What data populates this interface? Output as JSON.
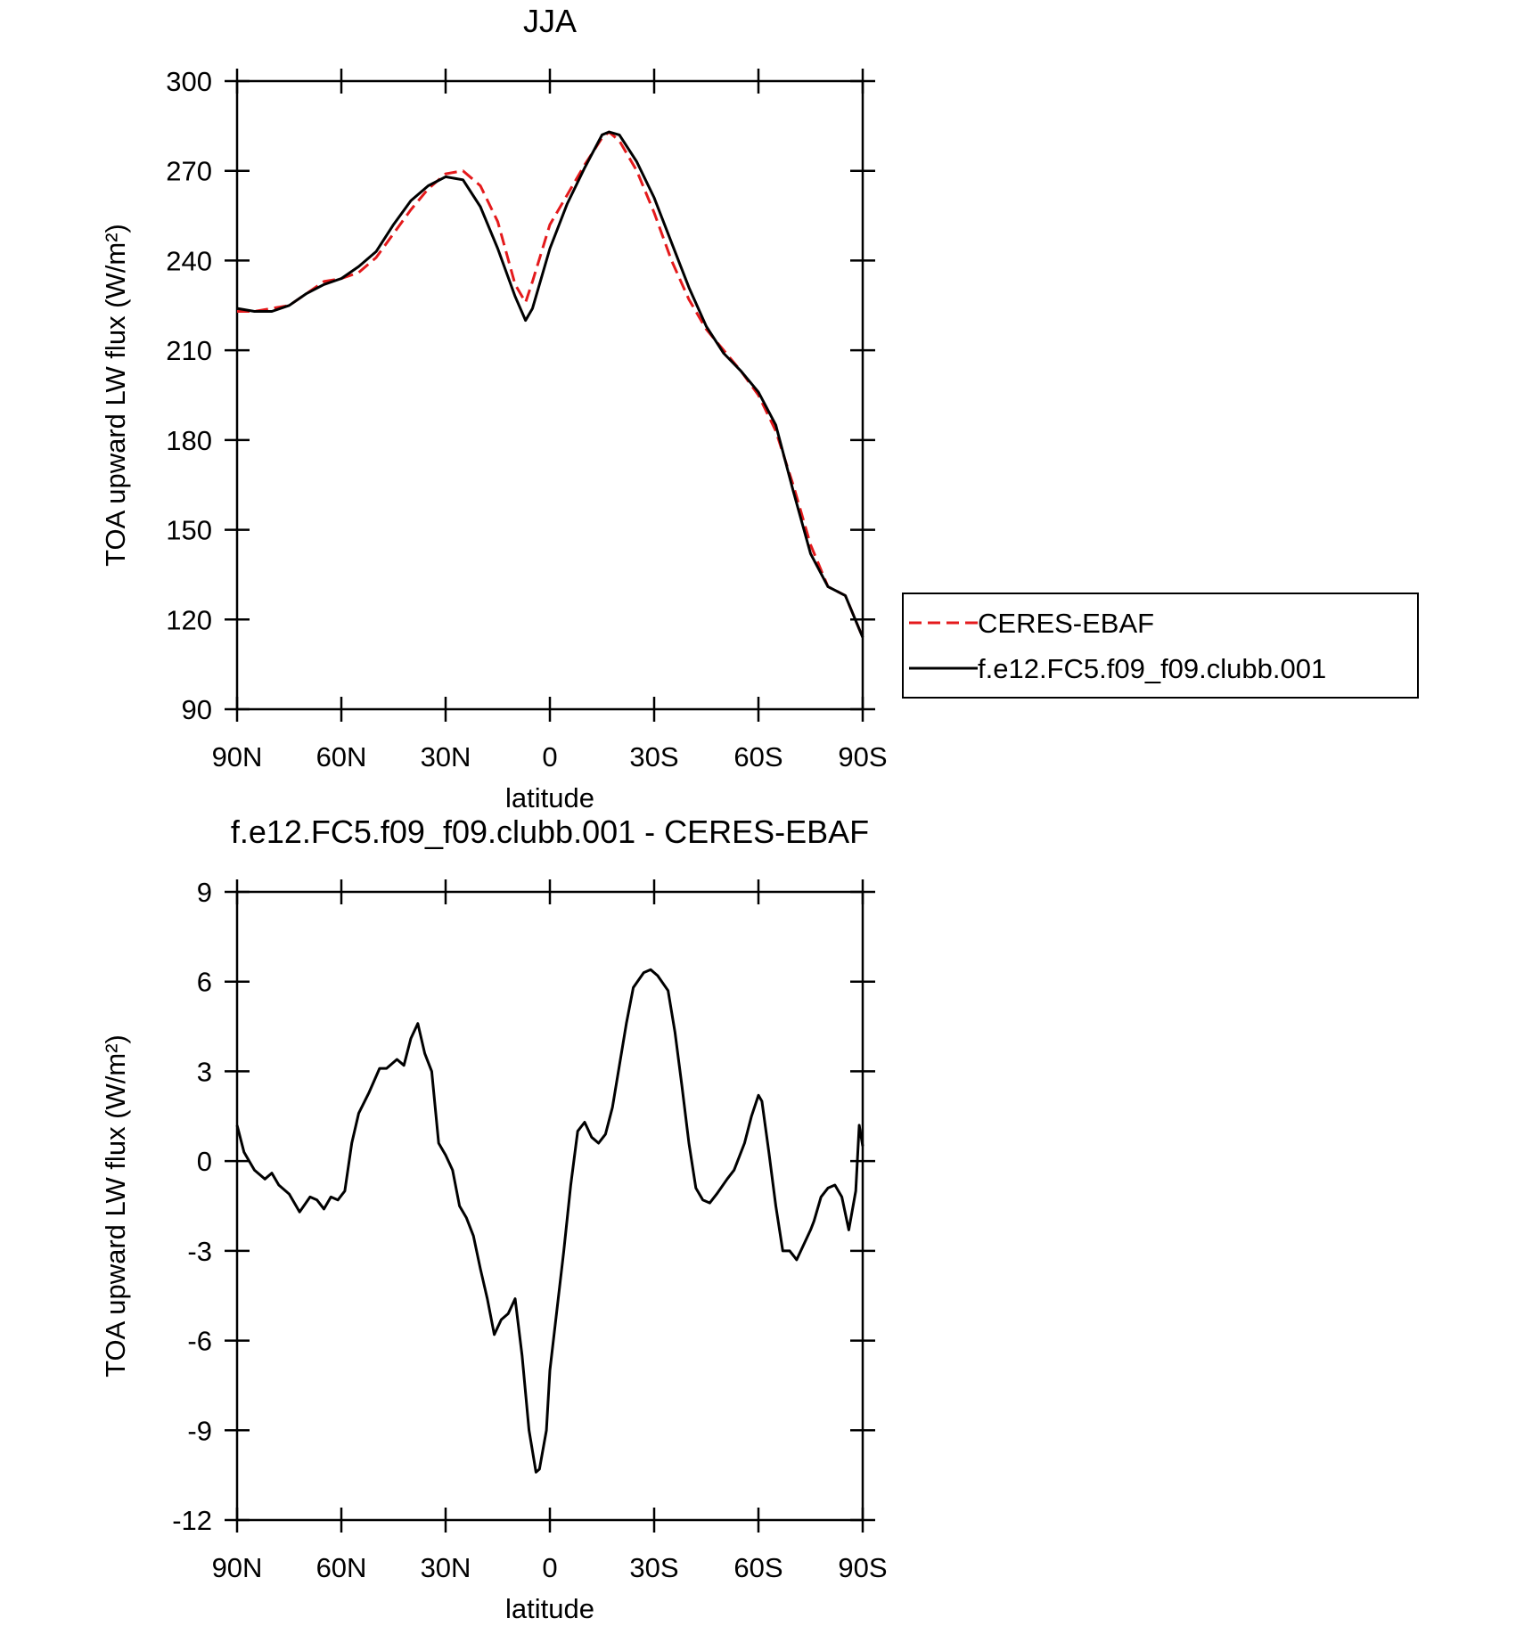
{
  "chart_data": [
    {
      "type": "line",
      "title": "JJA",
      "xlabel": "latitude",
      "ylabel": "TOA upward LW flux (W/m²)",
      "x": [
        90,
        85,
        80,
        75,
        70,
        65,
        60,
        55,
        50,
        45,
        40,
        35,
        30,
        25,
        20,
        15,
        10,
        7,
        5,
        0,
        -5,
        -10,
        -15,
        -17,
        -20,
        -25,
        -30,
        -35,
        -40,
        -45,
        -50,
        -55,
        -60,
        -65,
        -70,
        -75,
        -80,
        -85,
        -90
      ],
      "series": [
        {
          "name": "CERES-EBAF",
          "color": "#e41a1c",
          "linestyle": "dashed",
          "values": [
            223,
            223,
            224,
            225,
            229,
            233,
            234,
            236,
            241,
            249,
            257,
            264,
            269,
            270,
            265,
            253,
            232,
            226,
            233,
            252,
            262,
            272,
            281,
            283,
            280,
            270,
            256,
            240,
            227,
            217,
            210,
            203,
            195,
            183,
            165,
            145,
            131,
            128,
            114
          ]
        },
        {
          "name": "f.e12.FC5.f09_f09.clubb.001",
          "color": "#000000",
          "linestyle": "solid",
          "values": [
            224,
            223,
            223,
            225,
            229,
            232,
            234,
            238,
            243,
            252,
            260,
            265,
            268,
            267,
            258,
            244,
            228,
            220,
            224,
            244,
            259,
            271,
            282,
            283,
            282,
            273,
            261,
            246,
            231,
            218,
            209,
            203,
            196,
            185,
            163,
            142,
            131,
            128,
            114
          ]
        }
      ],
      "xlim": [
        90,
        -90
      ],
      "xticks": [
        {
          "value": 90,
          "label": "90N"
        },
        {
          "value": 60,
          "label": "60N"
        },
        {
          "value": 30,
          "label": "30N"
        },
        0,
        {
          "value": -30,
          "label": "30S"
        },
        {
          "value": -60,
          "label": "60S"
        },
        {
          "value": -90,
          "label": "90S"
        }
      ],
      "ylim": [
        90,
        300
      ],
      "yticks": [
        90,
        120,
        150,
        180,
        210,
        240,
        270,
        300
      ],
      "legend": "right"
    },
    {
      "type": "line",
      "title": "f.e12.FC5.f09_f09.clubb.001 - CERES-EBAF",
      "xlabel": "latitude",
      "ylabel": "TOA upward LW flux (W/m²)",
      "x": [
        90,
        88,
        85,
        82,
        80,
        78,
        75,
        72,
        69,
        67,
        65,
        63,
        61,
        59,
        57,
        55,
        52,
        49,
        47,
        44,
        42,
        40,
        38,
        36,
        34,
        32,
        30,
        28,
        26,
        24,
        22,
        20,
        18,
        16,
        14,
        12,
        10,
        8,
        6,
        4,
        3,
        1,
        0,
        -2,
        -4,
        -6,
        -8,
        -10,
        -12,
        -14,
        -16,
        -18,
        -20,
        -22,
        -24,
        -27,
        -29,
        -31,
        -34,
        -36,
        -38,
        -40,
        -42,
        -44,
        -46,
        -48,
        -51,
        -53,
        -56,
        -58,
        -60,
        -61,
        -63,
        -65,
        -67,
        -69,
        -71,
        -73,
        -75,
        -76,
        -78,
        -80,
        -82,
        -84,
        -86,
        -88,
        -89,
        -90
      ],
      "values": [
        1.2,
        0.3,
        -0.3,
        -0.6,
        -0.4,
        -0.8,
        -1.1,
        -1.7,
        -1.2,
        -1.3,
        -1.6,
        -1.2,
        -1.3,
        -1.0,
        0.6,
        1.6,
        2.3,
        3.1,
        3.1,
        3.4,
        3.2,
        4.1,
        4.6,
        3.6,
        3.0,
        0.6,
        0.2,
        -0.3,
        -1.5,
        -1.9,
        -2.5,
        -3.6,
        -4.6,
        -5.8,
        -5.3,
        -5.1,
        -4.6,
        -6.5,
        -9.0,
        -10.4,
        -10.3,
        -9.0,
        -7.0,
        -5.0,
        -3.0,
        -0.8,
        1.0,
        1.3,
        0.8,
        0.6,
        0.9,
        1.8,
        3.2,
        4.6,
        5.8,
        6.3,
        6.4,
        6.2,
        5.7,
        4.3,
        2.5,
        0.6,
        -0.9,
        -1.3,
        -1.4,
        -1.1,
        -0.6,
        -0.3,
        0.6,
        1.5,
        2.2,
        2.0,
        0.3,
        -1.5,
        -3.0,
        -3.0,
        -3.3,
        -2.8,
        -2.3,
        -2.0,
        -1.2,
        -0.9,
        -0.8,
        -1.2,
        -2.3,
        -1.0,
        1.2,
        0.5
      ],
      "color": "#000000",
      "xlim": [
        90,
        -90
      ],
      "xticks": [
        {
          "value": 90,
          "label": "90N"
        },
        {
          "value": 60,
          "label": "60N"
        },
        {
          "value": 30,
          "label": "30N"
        },
        0,
        {
          "value": -30,
          "label": "30S"
        },
        {
          "value": -60,
          "label": "60S"
        },
        {
          "value": -90,
          "label": "90S"
        }
      ],
      "ylim": [
        -12,
        9
      ],
      "yticks": [
        -12,
        -9,
        -6,
        -3,
        0,
        3,
        6,
        9
      ]
    }
  ]
}
